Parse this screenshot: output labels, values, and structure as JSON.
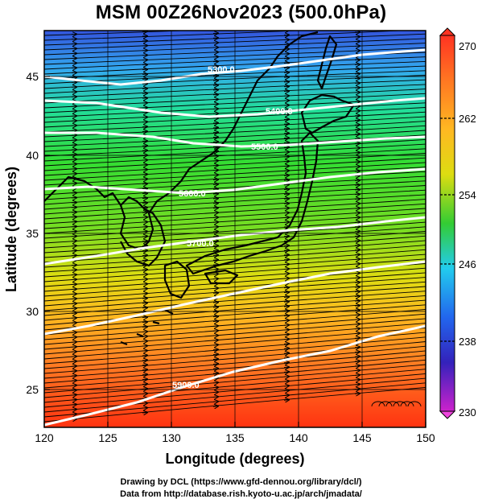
{
  "title": "MSM 00Z26Nov2023 (500.0hPa)",
  "axes": {
    "xlabel": "Longitude (degrees)",
    "ylabel": "Latitude  (degrees)",
    "xticks": [
      120,
      125,
      130,
      135,
      140,
      145,
      150
    ],
    "yticks": [
      25,
      30,
      35,
      40,
      45
    ],
    "xlim": [
      120,
      150
    ],
    "ylim": [
      22.4,
      47.6
    ]
  },
  "colorbar": {
    "ticks": [
      270,
      262,
      254,
      246,
      238,
      230
    ],
    "range": [
      230,
      270
    ],
    "colors": [
      "#ff3366",
      "#cc22cc",
      "#3322cc",
      "#2266ee",
      "#22ccee",
      "#22dd66",
      "#33cc33",
      "#88dd22",
      "#eedd11",
      "#ff9922",
      "#ff5522",
      "#ff3311"
    ]
  },
  "contours": [
    {
      "label": "5300.0",
      "lon": 138.5
    },
    {
      "label": "5400.0",
      "lon": 141.0
    },
    {
      "label": "5500.0",
      "lon": 138.8
    },
    {
      "label": "5600.0",
      "lon": 134.0
    },
    {
      "label": "5700.0",
      "lon": 135.0
    },
    {
      "label": "5900.0",
      "lon": 133.0
    }
  ],
  "credits": {
    "line1": "Drawing by DCL (https://www.gfd-dennou.org/library/dcl/)",
    "line2": "Data from http://database.rish.kyoto-u.ac.jp/arch/jmadata/"
  },
  "chart_data": {
    "type": "map",
    "title": "MSM 00Z26Nov2023 (500.0hPa)",
    "xlabel": "Longitude (degrees)",
    "ylabel": "Latitude  (degrees)",
    "xlim": [
      120,
      150
    ],
    "ylim": [
      22.4,
      47.6
    ],
    "colorbar_range": [
      230,
      270
    ],
    "contour_labels": [
      "5300.0",
      "5400.0",
      "5500.0",
      "5600.0",
      "5700.0",
      "5900.0"
    ],
    "grid": true
  }
}
